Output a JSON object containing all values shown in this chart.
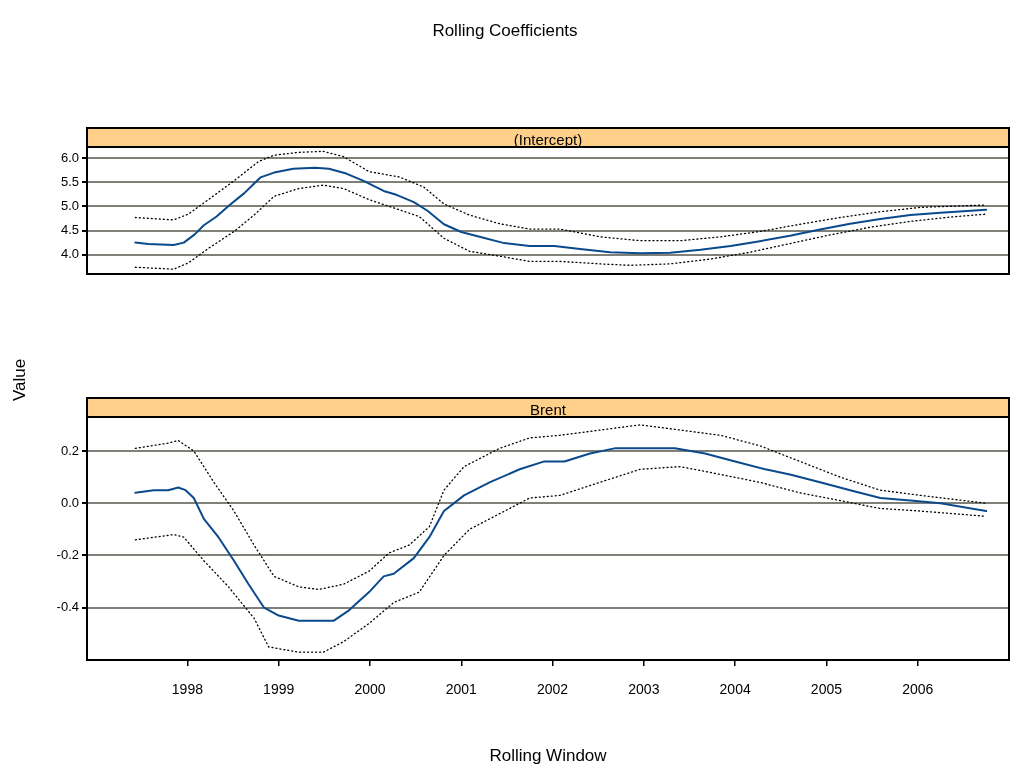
{
  "chart_data": [
    {
      "type": "line",
      "title": "Rolling Coefficients",
      "subtitle": "(Intercept)",
      "ylabel": "Value",
      "marker": "none",
      "grid": "y",
      "tick_labels": "y",
      "xlim": [
        1996.9,
        2007.0
      ],
      "xticks": [
        1998,
        1999,
        2000,
        2001,
        2002,
        2003,
        2004,
        2005,
        2006
      ],
      "ylim": [
        3.6,
        6.23
      ],
      "yticks": [
        {
          "value": 4,
          "label": "4.0"
        },
        4.5,
        {
          "value": 5,
          "label": "5.0"
        },
        5.5,
        {
          "value": 6,
          "label": "6.0"
        }
      ],
      "series": [
        {
          "color": "#0a4a8c",
          "line_style": "solid",
          "x": [
            1997.43,
            1997.57,
            1997.71,
            1997.85,
            1997.96,
            1998.08,
            1998.18,
            1998.32,
            1998.45,
            1998.62,
            1998.8,
            1998.95,
            1999.16,
            1999.4,
            1999.55,
            1999.74,
            1999.93,
            2000.15,
            2000.29,
            2000.48,
            2000.63,
            2000.81,
            2001.0,
            2001.2,
            2001.47,
            2001.75,
            2002.02,
            2002.3,
            2002.63,
            2002.96,
            2003.29,
            2003.62,
            2003.95,
            2004.27,
            2004.6,
            2004.93,
            2005.26,
            2005.59,
            2005.92,
            2006.25,
            2006.75
          ],
          "values": [
            4.25,
            4.22,
            4.21,
            4.2,
            4.25,
            4.42,
            4.61,
            4.79,
            5.01,
            5.27,
            5.6,
            5.7,
            5.78,
            5.8,
            5.78,
            5.68,
            5.53,
            5.32,
            5.24,
            5.09,
            4.91,
            4.63,
            4.47,
            4.37,
            4.24,
            4.18,
            4.18,
            4.12,
            4.05,
            4.03,
            4.04,
            4.1,
            4.18,
            4.28,
            4.39,
            4.52,
            4.64,
            4.74,
            4.82,
            4.87,
            4.93
          ]
        },
        {
          "color": "#000000",
          "line_style": "dotted",
          "x": [
            1997.43,
            1997.85,
            1998.01,
            1998.23,
            1998.51,
            1998.78,
            1998.95,
            1999.22,
            1999.49,
            1999.71,
            1999.99,
            2000.32,
            2000.59,
            2000.81,
            2001.09,
            2001.42,
            2001.75,
            2002.08,
            2002.52,
            2002.96,
            2003.4,
            2003.84,
            2004.27,
            2004.71,
            2005.15,
            2005.59,
            2006.03,
            2006.75
          ],
          "values": [
            4.77,
            4.72,
            4.84,
            5.14,
            5.53,
            5.93,
            6.06,
            6.12,
            6.14,
            6.03,
            5.72,
            5.61,
            5.4,
            5.05,
            4.82,
            4.64,
            4.53,
            4.53,
            4.37,
            4.29,
            4.29,
            4.37,
            4.48,
            4.63,
            4.77,
            4.89,
            4.98,
            5.03
          ]
        },
        {
          "color": "#000000",
          "line_style": "dotted",
          "x": [
            1997.43,
            1997.85,
            1998.01,
            1998.23,
            1998.51,
            1998.73,
            1998.95,
            1999.22,
            1999.49,
            1999.71,
            1999.99,
            2000.32,
            2000.54,
            2000.81,
            2001.09,
            2001.42,
            2001.75,
            2002.08,
            2002.52,
            2002.85,
            2003.29,
            2003.73,
            2004.16,
            2004.6,
            2005.04,
            2005.48,
            2005.92,
            2006.36,
            2006.75
          ],
          "values": [
            3.74,
            3.7,
            3.83,
            4.13,
            4.48,
            4.82,
            5.21,
            5.37,
            5.44,
            5.37,
            5.14,
            4.93,
            4.79,
            4.34,
            4.07,
            3.97,
            3.86,
            3.86,
            3.81,
            3.78,
            3.81,
            3.91,
            4.05,
            4.23,
            4.41,
            4.57,
            4.69,
            4.78,
            4.84
          ]
        }
      ]
    },
    {
      "type": "line",
      "subtitle": "Brent",
      "xlabel": "Rolling Window",
      "marker": "none",
      "grid": "y",
      "xlim": [
        1996.9,
        2007.0
      ],
      "xticks": [
        1998,
        1999,
        2000,
        2001,
        2002,
        2003,
        2004,
        2005,
        2006
      ],
      "ylim": [
        -0.6,
        0.33
      ],
      "yticks": [
        -0.4,
        -0.2,
        {
          "value": 0,
          "label": "0.0"
        },
        0.2
      ],
      "series": [
        {
          "color": "#0a4a8c",
          "line_style": "solid",
          "x": [
            1997.43,
            1997.63,
            1997.79,
            1997.9,
            1997.98,
            1998.07,
            1998.18,
            1998.34,
            1998.51,
            1998.67,
            1998.84,
            1999.0,
            1999.22,
            1999.42,
            1999.6,
            1999.77,
            1999.99,
            2000.15,
            2000.26,
            2000.48,
            2000.65,
            2000.81,
            2001.03,
            2001.31,
            2001.64,
            2001.91,
            2002.13,
            2002.41,
            2002.68,
            2003.01,
            2003.34,
            2003.67,
            2004.0,
            2004.33,
            2004.6,
            2004.93,
            2005.26,
            2005.59,
            2005.92,
            2006.25,
            2006.75
          ],
          "values": [
            0.04,
            0.05,
            0.05,
            0.06,
            0.05,
            0.02,
            -0.06,
            -0.13,
            -0.22,
            -0.31,
            -0.4,
            -0.43,
            -0.45,
            -0.45,
            -0.45,
            -0.41,
            -0.34,
            -0.28,
            -0.27,
            -0.21,
            -0.13,
            -0.03,
            0.03,
            0.08,
            0.13,
            0.16,
            0.16,
            0.19,
            0.21,
            0.21,
            0.21,
            0.19,
            0.16,
            0.13,
            0.11,
            0.08,
            0.05,
            0.02,
            0.01,
            0.0,
            -0.03
          ]
        },
        {
          "color": "#000000",
          "line_style": "dotted",
          "x": [
            1997.43,
            1997.79,
            1997.9,
            1998.07,
            1998.29,
            1998.51,
            1998.73,
            1998.95,
            1999.22,
            1999.44,
            1999.71,
            1999.99,
            2000.21,
            2000.43,
            2000.65,
            2000.81,
            2001.03,
            2001.42,
            2001.75,
            2002.08,
            2002.52,
            2002.96,
            2003.4,
            2003.84,
            2004.27,
            2004.71,
            2005.15,
            2005.59,
            2006.03,
            2006.75
          ],
          "values": [
            0.21,
            0.23,
            0.24,
            0.2,
            0.08,
            -0.03,
            -0.16,
            -0.28,
            -0.32,
            -0.33,
            -0.31,
            -0.26,
            -0.19,
            -0.16,
            -0.09,
            0.05,
            0.14,
            0.21,
            0.25,
            0.26,
            0.28,
            0.3,
            0.28,
            0.26,
            0.22,
            0.16,
            0.1,
            0.05,
            0.03,
            0.0
          ]
        },
        {
          "color": "#000000",
          "line_style": "dotted",
          "x": [
            1997.43,
            1997.85,
            1997.96,
            1998.18,
            1998.45,
            1998.73,
            1998.89,
            1999.22,
            1999.49,
            1999.71,
            1999.99,
            2000.26,
            2000.54,
            2000.81,
            2001.09,
            2001.42,
            2001.75,
            2002.08,
            2002.52,
            2002.96,
            2003.4,
            2003.84,
            2004.27,
            2004.71,
            2005.15,
            2005.59,
            2006.03,
            2006.75
          ],
          "values": [
            -0.14,
            -0.12,
            -0.13,
            -0.22,
            -0.32,
            -0.44,
            -0.55,
            -0.57,
            -0.57,
            -0.53,
            -0.46,
            -0.38,
            -0.34,
            -0.2,
            -0.1,
            -0.04,
            0.02,
            0.03,
            0.08,
            0.13,
            0.14,
            0.11,
            0.08,
            0.04,
            0.01,
            -0.02,
            -0.03,
            -0.05
          ]
        }
      ]
    }
  ]
}
